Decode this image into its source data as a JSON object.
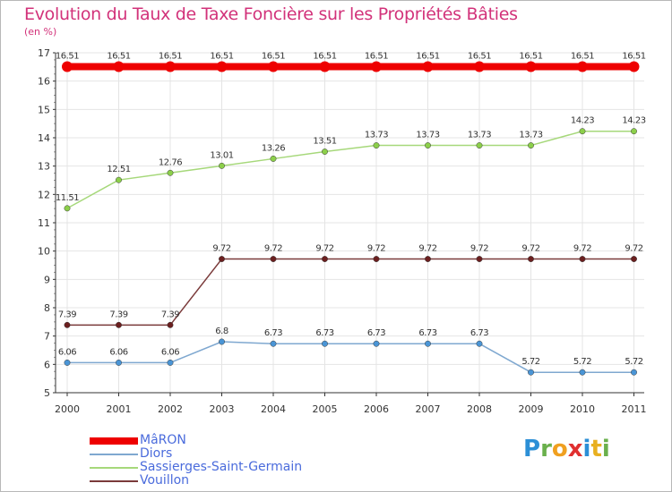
{
  "header": {
    "title": "Evolution du Taux de Taxe Foncière sur les Propriétés Bâties",
    "subtitle": "(en %)"
  },
  "chart_data": {
    "type": "line",
    "title": "Evolution du Taux de Taxe Foncière sur les Propriétés Bâties",
    "ylabel": "(en %)",
    "xlabel": "",
    "x": [
      "2000",
      "2001",
      "2002",
      "2003",
      "2004",
      "2005",
      "2006",
      "2007",
      "2008",
      "2009",
      "2010",
      "2011"
    ],
    "ylim": [
      5,
      17
    ],
    "yticks": [
      "5",
      "6",
      "7",
      "8",
      "9",
      "10",
      "11",
      "12",
      "13",
      "14",
      "15",
      "16",
      "17"
    ],
    "series": [
      {
        "name": "MâRON",
        "color": "#ee0000",
        "point_color": "#ee0000",
        "thick": true,
        "values": [
          16.51,
          16.51,
          16.51,
          16.51,
          16.51,
          16.51,
          16.51,
          16.51,
          16.51,
          16.51,
          16.51,
          16.51
        ],
        "labels": [
          "16.51",
          "16.51",
          "16.51",
          "16.51",
          "16.51",
          "16.51",
          "16.51",
          "16.51",
          "16.51",
          "16.51",
          "16.51",
          "16.51"
        ]
      },
      {
        "name": "Diors",
        "color": "#7fa8d0",
        "point_color": "#4a95d6",
        "thick": false,
        "values": [
          6.06,
          6.06,
          6.06,
          6.8,
          6.73,
          6.73,
          6.73,
          6.73,
          6.73,
          5.72,
          5.72,
          5.72
        ],
        "labels": [
          "6.06",
          "6.06",
          "6.06",
          "6.8",
          "6.73",
          "6.73",
          "6.73",
          "6.73",
          "6.73",
          "5.72",
          "5.72",
          "5.72"
        ]
      },
      {
        "name": "Sassierges-Saint-Germain",
        "color": "#a6d87a",
        "point_color": "#8ccf4a",
        "thick": false,
        "values": [
          11.51,
          12.51,
          12.76,
          13.01,
          13.26,
          13.51,
          13.73,
          13.73,
          13.73,
          13.73,
          14.23,
          14.23
        ],
        "labels": [
          "11.51",
          "12.51",
          "12.76",
          "13.01",
          "13.26",
          "13.51",
          "13.73",
          "13.73",
          "13.73",
          "13.73",
          "14.23",
          "14.23"
        ]
      },
      {
        "name": "Vouillon",
        "color": "#7a3a3a",
        "point_color": "#6b1f1f",
        "thick": false,
        "values": [
          7.39,
          7.39,
          7.39,
          9.72,
          9.72,
          9.72,
          9.72,
          9.72,
          9.72,
          9.72,
          9.72,
          9.72
        ],
        "labels": [
          "7.39",
          "7.39",
          "7.39",
          "9.72",
          "9.72",
          "9.72",
          "9.72",
          "9.72",
          "9.72",
          "9.72",
          "9.72",
          "9.72"
        ]
      }
    ],
    "legend_position": "bottom-left",
    "grid": true
  },
  "logo": {
    "text": "Proxiti"
  }
}
